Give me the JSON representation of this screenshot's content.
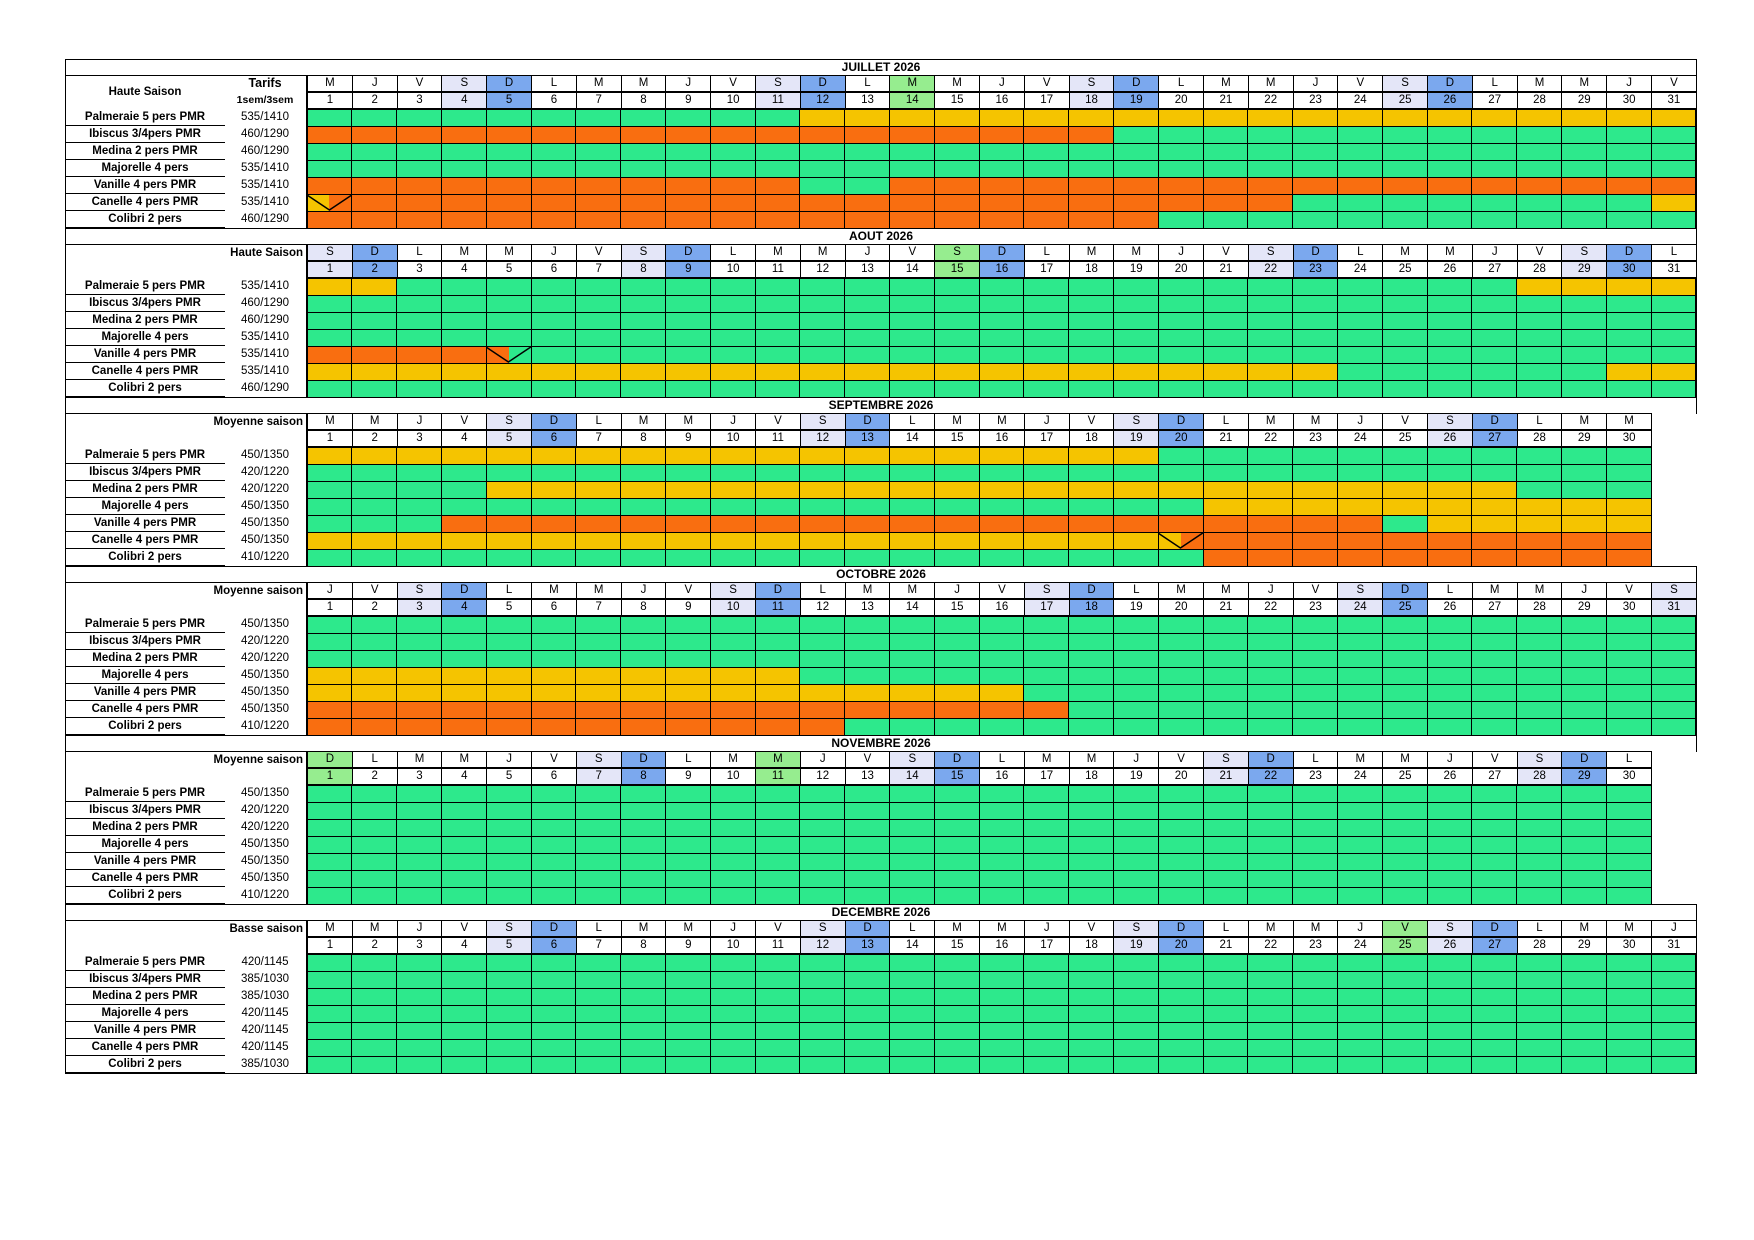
{
  "legend_colors": {
    "libre": "#2DE98C",
    "option": "#F5C400",
    "reserve": "#F96E10",
    "samedi": "#E4E6F8",
    "dimanche": "#7BA8EE",
    "ferie": "#96ED8F"
  },
  "months": [
    {
      "title": "JUILLET 2026",
      "season_label": "Haute Saison",
      "tarif_label": "Tarifs",
      "tarif_sub": "1sem/3sem",
      "days": 31,
      "weekdays": [
        "M",
        "J",
        "V",
        "S",
        "D",
        "L",
        "M",
        "M",
        "J",
        "V",
        "S",
        "D",
        "L",
        "M",
        "M",
        "J",
        "V",
        "S",
        "D",
        "L",
        "M",
        "M",
        "J",
        "V",
        "S",
        "D",
        "L",
        "M",
        "M",
        "J",
        "V"
      ],
      "holidays": [
        14
      ],
      "rows": [
        {
          "name": "Palmeraie 5 pers PMR",
          "tarif": "535/1410",
          "segments": [
            [
              "G",
              1,
              12
            ],
            [
              "Y",
              12,
              32
            ]
          ]
        },
        {
          "name": "Ibiscus 3/4pers PMR",
          "tarif": "460/1290",
          "segments": [
            [
              "O",
              1,
              19
            ],
            [
              "G",
              19,
              32
            ]
          ]
        },
        {
          "name": "Medina 2 pers PMR",
          "tarif": "460/1290",
          "segments": [
            [
              "G",
              1,
              32
            ]
          ]
        },
        {
          "name": "Majorelle 4 pers",
          "tarif": "535/1410",
          "segments": [
            [
              "G",
              1,
              32
            ]
          ]
        },
        {
          "name": "Vanille 4 pers PMR",
          "tarif": "535/1410",
          "segments": [
            [
              "O",
              1,
              12
            ],
            [
              "G",
              12,
              14
            ],
            [
              "O",
              14,
              32
            ]
          ]
        },
        {
          "name": "Canelle 4 pers PMR",
          "tarif": "535/1410",
          "segments": [
            [
              "Y",
              1,
              1.5
            ],
            [
              "O",
              1.5,
              23
            ],
            [
              "G",
              23,
              31
            ],
            [
              "Y",
              31,
              32
            ]
          ],
          "diag": [
            1.5
          ]
        },
        {
          "name": "Colibri 2 pers",
          "tarif": "460/1290",
          "segments": [
            [
              "O",
              1,
              20
            ],
            [
              "G",
              20,
              32
            ]
          ]
        }
      ]
    },
    {
      "title": "AOUT 2026",
      "season_label": "Haute Saison",
      "days": 31,
      "weekdays": [
        "S",
        "D",
        "L",
        "M",
        "M",
        "J",
        "V",
        "S",
        "D",
        "L",
        "M",
        "M",
        "J",
        "V",
        "S",
        "D",
        "L",
        "M",
        "M",
        "J",
        "V",
        "S",
        "D",
        "L",
        "M",
        "M",
        "J",
        "V",
        "S",
        "D",
        "L"
      ],
      "holidays": [
        15
      ],
      "rows": [
        {
          "name": "Palmeraie 5 pers PMR",
          "tarif": "535/1410",
          "segments": [
            [
              "Y",
              1,
              3
            ],
            [
              "G",
              3,
              28
            ],
            [
              "Y",
              28,
              32
            ]
          ]
        },
        {
          "name": "Ibiscus 3/4pers PMR",
          "tarif": "460/1290",
          "segments": [
            [
              "G",
              1,
              32
            ]
          ]
        },
        {
          "name": "Medina 2 pers PMR",
          "tarif": "460/1290",
          "segments": [
            [
              "G",
              1,
              32
            ]
          ]
        },
        {
          "name": "Majorelle 4 pers",
          "tarif": "535/1410",
          "segments": [
            [
              "G",
              1,
              32
            ]
          ]
        },
        {
          "name": "Vanille 4 pers PMR",
          "tarif": "535/1410",
          "segments": [
            [
              "O",
              1,
              5.5
            ],
            [
              "G",
              5.5,
              32
            ]
          ],
          "diag": [
            5.5
          ]
        },
        {
          "name": "Canelle 4 pers PMR",
          "tarif": "535/1410",
          "segments": [
            [
              "Y",
              1,
              24
            ],
            [
              "G",
              24,
              30
            ],
            [
              "Y",
              30,
              32
            ]
          ]
        },
        {
          "name": "Colibri 2 pers",
          "tarif": "460/1290",
          "segments": [
            [
              "G",
              1,
              32
            ]
          ]
        }
      ]
    },
    {
      "title": "SEPTEMBRE 2026",
      "season_label": "Moyenne saison",
      "days": 30,
      "weekdays": [
        "M",
        "M",
        "J",
        "V",
        "S",
        "D",
        "L",
        "M",
        "M",
        "J",
        "V",
        "S",
        "D",
        "L",
        "M",
        "M",
        "J",
        "V",
        "S",
        "D",
        "L",
        "M",
        "M",
        "J",
        "V",
        "S",
        "D",
        "L",
        "M",
        "M"
      ],
      "holidays": [],
      "rows": [
        {
          "name": "Palmeraie 5 pers PMR",
          "tarif": "450/1350",
          "segments": [
            [
              "Y",
              1,
              20
            ],
            [
              "G",
              20,
              31
            ]
          ]
        },
        {
          "name": "Ibiscus 3/4pers PMR",
          "tarif": "420/1220",
          "segments": [
            [
              "G",
              1,
              31
            ]
          ]
        },
        {
          "name": "Medina 2 pers PMR",
          "tarif": "420/1220",
          "segments": [
            [
              "G",
              1,
              5
            ],
            [
              "Y",
              5,
              28
            ],
            [
              "G",
              28,
              31
            ]
          ]
        },
        {
          "name": "Majorelle 4 pers",
          "tarif": "450/1350",
          "segments": [
            [
              "G",
              1,
              21
            ],
            [
              "Y",
              21,
              31
            ]
          ]
        },
        {
          "name": "Vanille 4 pers PMR",
          "tarif": "450/1350",
          "segments": [
            [
              "G",
              1,
              4
            ],
            [
              "O",
              4,
              25
            ],
            [
              "G",
              25,
              26
            ],
            [
              "Y",
              26,
              31
            ]
          ]
        },
        {
          "name": "Canelle 4 pers PMR",
          "tarif": "450/1350",
          "segments": [
            [
              "Y",
              1,
              20.5
            ],
            [
              "O",
              20.5,
              31
            ]
          ],
          "diag": [
            20.5
          ]
        },
        {
          "name": "Colibri 2 pers",
          "tarif": "410/1220",
          "segments": [
            [
              "G",
              1,
              21
            ],
            [
              "O",
              21,
              31
            ]
          ]
        }
      ]
    },
    {
      "title": "OCTOBRE 2026",
      "season_label": "Moyenne saison",
      "days": 31,
      "weekdays": [
        "J",
        "V",
        "S",
        "D",
        "L",
        "M",
        "M",
        "J",
        "V",
        "S",
        "D",
        "L",
        "M",
        "M",
        "J",
        "V",
        "S",
        "D",
        "L",
        "M",
        "M",
        "J",
        "V",
        "S",
        "D",
        "L",
        "M",
        "M",
        "J",
        "V",
        "S"
      ],
      "holidays": [],
      "rows": [
        {
          "name": "Palmeraie 5 pers PMR",
          "tarif": "450/1350",
          "segments": [
            [
              "G",
              1,
              32
            ]
          ]
        },
        {
          "name": "Ibiscus 3/4pers PMR",
          "tarif": "420/1220",
          "segments": [
            [
              "G",
              1,
              32
            ]
          ]
        },
        {
          "name": "Medina 2 pers PMR",
          "tarif": "420/1220",
          "segments": [
            [
              "G",
              1,
              32
            ]
          ]
        },
        {
          "name": "Majorelle 4 pers",
          "tarif": "450/1350",
          "segments": [
            [
              "Y",
              1,
              12
            ],
            [
              "G",
              12,
              32
            ]
          ]
        },
        {
          "name": "Vanille 4 pers PMR",
          "tarif": "450/1350",
          "segments": [
            [
              "Y",
              1,
              17
            ],
            [
              "G",
              17,
              32
            ]
          ]
        },
        {
          "name": "Canelle 4 pers PMR",
          "tarif": "450/1350",
          "segments": [
            [
              "O",
              1,
              18
            ],
            [
              "G",
              18,
              32
            ]
          ]
        },
        {
          "name": "Colibri 2 pers",
          "tarif": "410/1220",
          "segments": [
            [
              "O",
              1,
              13
            ],
            [
              "G",
              13,
              32
            ]
          ]
        }
      ]
    },
    {
      "title": "NOVEMBRE 2026",
      "season_label": "Moyenne saison",
      "days": 30,
      "weekdays": [
        "D",
        "L",
        "M",
        "M",
        "J",
        "V",
        "S",
        "D",
        "L",
        "M",
        "M",
        "J",
        "V",
        "S",
        "D",
        "L",
        "M",
        "M",
        "J",
        "V",
        "S",
        "D",
        "L",
        "M",
        "M",
        "J",
        "V",
        "S",
        "D",
        "L"
      ],
      "holidays": [
        1,
        11
      ],
      "rows": [
        {
          "name": "Palmeraie 5 pers PMR",
          "tarif": "450/1350",
          "segments": [
            [
              "G",
              1,
              31
            ]
          ]
        },
        {
          "name": "Ibiscus 3/4pers PMR",
          "tarif": "420/1220",
          "segments": [
            [
              "G",
              1,
              31
            ]
          ]
        },
        {
          "name": "Medina 2 pers PMR",
          "tarif": "420/1220",
          "segments": [
            [
              "G",
              1,
              31
            ]
          ]
        },
        {
          "name": "Majorelle 4 pers",
          "tarif": "450/1350",
          "segments": [
            [
              "G",
              1,
              31
            ]
          ]
        },
        {
          "name": "Vanille 4 pers PMR",
          "tarif": "450/1350",
          "segments": [
            [
              "G",
              1,
              31
            ]
          ]
        },
        {
          "name": "Canelle 4 pers PMR",
          "tarif": "450/1350",
          "segments": [
            [
              "G",
              1,
              31
            ]
          ]
        },
        {
          "name": "Colibri 2 pers",
          "tarif": "410/1220",
          "segments": [
            [
              "G",
              1,
              31
            ]
          ]
        }
      ]
    },
    {
      "title": "DECEMBRE 2026",
      "season_label": "Basse saison",
      "days": 31,
      "weekdays": [
        "M",
        "M",
        "J",
        "V",
        "S",
        "D",
        "L",
        "M",
        "M",
        "J",
        "V",
        "S",
        "D",
        "L",
        "M",
        "M",
        "J",
        "V",
        "S",
        "D",
        "L",
        "M",
        "M",
        "J",
        "V",
        "S",
        "D",
        "L",
        "M",
        "M",
        "J"
      ],
      "holidays": [
        25
      ],
      "rows": [
        {
          "name": "Palmeraie 5 pers PMR",
          "tarif": "420/1145",
          "segments": [
            [
              "G",
              1,
              32
            ]
          ]
        },
        {
          "name": "Ibiscus 3/4pers PMR",
          "tarif": "385/1030",
          "segments": [
            [
              "G",
              1,
              32
            ]
          ]
        },
        {
          "name": "Medina 2 pers PMR",
          "tarif": "385/1030",
          "segments": [
            [
              "G",
              1,
              32
            ]
          ]
        },
        {
          "name": "Majorelle 4 pers",
          "tarif": "420/1145",
          "segments": [
            [
              "G",
              1,
              32
            ]
          ]
        },
        {
          "name": "Vanille 4 pers PMR",
          "tarif": "420/1145",
          "segments": [
            [
              "G",
              1,
              32
            ]
          ]
        },
        {
          "name": "Canelle 4 pers PMR",
          "tarif": "420/1145",
          "segments": [
            [
              "G",
              1,
              32
            ]
          ]
        },
        {
          "name": "Colibri 2 pers",
          "tarif": "385/1030",
          "segments": [
            [
              "G",
              1,
              32
            ]
          ]
        }
      ]
    }
  ]
}
